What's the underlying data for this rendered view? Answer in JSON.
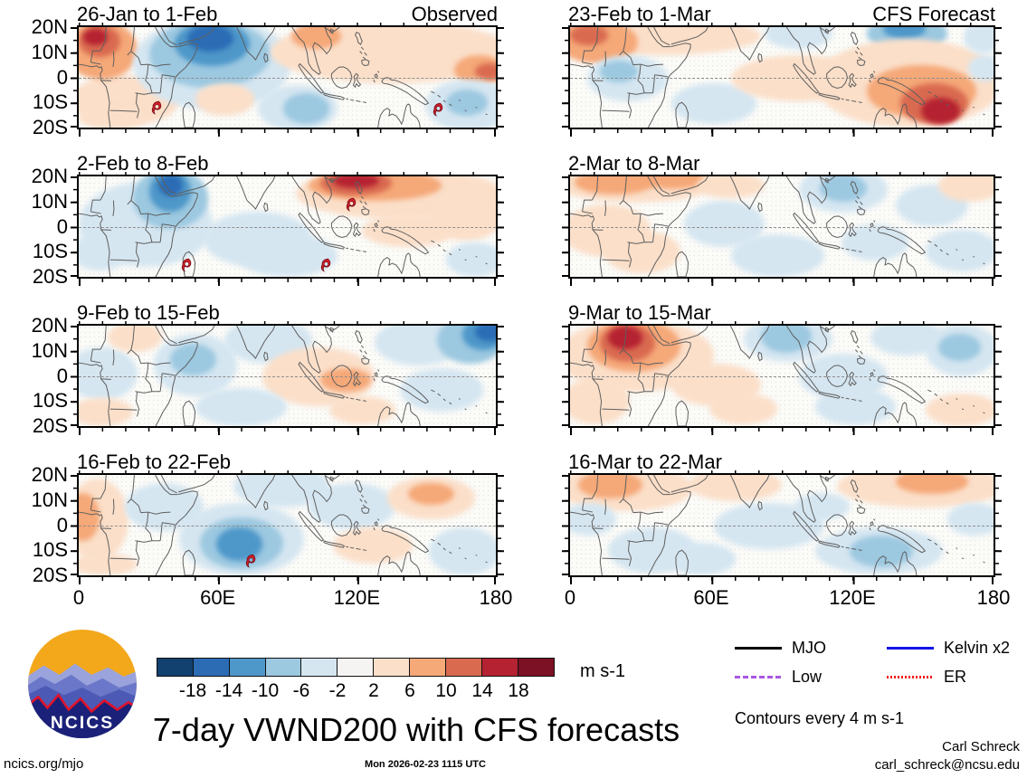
{
  "chart_data": {
    "type": "heatmap",
    "title": "7-day VWND200 with CFS forecasts",
    "generated": "Mon 2026-02-23 1115 UTC",
    "site": "ncics.org/mjo",
    "credit_name": "Carl Schreck",
    "credit_email": "carl_schreck@ncsu.edu",
    "units_label": "m s-1",
    "contour_note": "Contours every 4 m s-1",
    "logo_text": "NCICS",
    "x_axis": {
      "ticks": [
        "0",
        "60E",
        "120E",
        "180"
      ],
      "positions_pct": [
        0,
        33.333,
        66.667,
        100
      ],
      "range_deg": [
        0,
        180
      ]
    },
    "y_axis": {
      "ticks": [
        "20N",
        "10N",
        "0",
        "10S",
        "20S"
      ],
      "positions_pct": [
        0,
        25,
        50,
        75,
        100
      ],
      "range_deg": [
        20,
        -20
      ]
    },
    "colorbar": {
      "levels": [
        "-18",
        "-14",
        "-10",
        "-6",
        "-2",
        "2",
        "6",
        "10",
        "14",
        "18"
      ],
      "colors": [
        "#12406f",
        "#2b6cb5",
        "#4e97c9",
        "#9cc8e0",
        "#d5e6f1",
        "#f5f4f2",
        "#fbdfc9",
        "#f5a878",
        "#d96a50",
        "#b52231",
        "#7c1024"
      ]
    },
    "palette": {
      "b1": "#d5e6f1",
      "b2": "#9cc8e0",
      "b3": "#4e97c9",
      "b4": "#2b6cb5",
      "r1": "#fbdfc9",
      "r2": "#f5a878",
      "r3": "#d96a50",
      "r4": "#b52231"
    },
    "legend": {
      "items": [
        {
          "label": "MJO",
          "color": "#000000",
          "style": "solid"
        },
        {
          "label": "Kelvin x2",
          "color": "#1414e8",
          "style": "solid"
        },
        {
          "label": "Low",
          "color": "#a957e3",
          "style": "dashed"
        },
        {
          "label": "ER",
          "color": "#f21818",
          "style": "dotted"
        }
      ]
    },
    "panels": [
      {
        "title": "26-Jan to 1-Feb",
        "corner": "Observed",
        "col": 0,
        "row": 0,
        "blobs": [
          [
            -2,
            48,
            26,
            50,
            "r1"
          ],
          [
            -3,
            -6,
            17,
            58,
            "r2"
          ],
          [
            0,
            -2,
            10,
            32,
            "r3"
          ],
          [
            1,
            2,
            6,
            16,
            "r4"
          ],
          [
            13,
            -10,
            38,
            92,
            "b1"
          ],
          [
            17,
            -6,
            29,
            66,
            "b2"
          ],
          [
            23,
            -5,
            18,
            44,
            "b3"
          ],
          [
            26,
            -2,
            11,
            26,
            "b4"
          ],
          [
            28,
            56,
            14,
            32,
            "r1"
          ],
          [
            46,
            -6,
            58,
            62,
            "r1"
          ],
          [
            51,
            -4,
            12,
            26,
            "r2"
          ],
          [
            90,
            28,
            12,
            30,
            "r2"
          ],
          [
            95,
            36,
            7,
            16,
            "r3"
          ],
          [
            43,
            58,
            19,
            46,
            "b1"
          ],
          [
            49,
            66,
            11,
            30,
            "b2"
          ],
          [
            83,
            52,
            21,
            52,
            "b1"
          ],
          [
            88,
            62,
            10,
            26,
            "b2"
          ],
          [
            0,
            78,
            16,
            24,
            "r1"
          ]
        ],
        "cyclones": [
          [
            18.5,
            80
          ],
          [
            86,
            82
          ]
        ]
      },
      {
        "title": "2-Feb to 8-Feb",
        "corner": "",
        "col": 0,
        "row": 1,
        "blobs": [
          [
            0,
            5,
            32,
            85,
            "b1"
          ],
          [
            13,
            -8,
            18,
            60,
            "b2"
          ],
          [
            17,
            -5,
            10,
            40,
            "b3"
          ],
          [
            19,
            -2,
            6,
            22,
            "b4"
          ],
          [
            30,
            35,
            26,
            55,
            "b1"
          ],
          [
            52,
            -8,
            50,
            50,
            "r1"
          ],
          [
            55,
            -6,
            32,
            30,
            "r2"
          ],
          [
            58,
            -5,
            17,
            24,
            "r3"
          ],
          [
            61,
            -3,
            11,
            15,
            "r4"
          ],
          [
            84,
            12,
            18,
            52,
            "r1"
          ],
          [
            68,
            38,
            22,
            32,
            "r1"
          ],
          [
            38,
            58,
            24,
            42,
            "b1"
          ],
          [
            88,
            66,
            14,
            34,
            "b1"
          ],
          [
            -2,
            58,
            14,
            36,
            "b1"
          ]
        ],
        "cyclones": [
          [
            25.5,
            88
          ],
          [
            59,
            88
          ],
          [
            65,
            28
          ]
        ]
      },
      {
        "title": "9-Feb to 15-Feb",
        "corner": "",
        "col": 0,
        "row": 2,
        "blobs": [
          [
            -3,
            22,
            17,
            52,
            "b1"
          ],
          [
            7,
            -4,
            13,
            30,
            "r1"
          ],
          [
            18,
            8,
            20,
            62,
            "b1"
          ],
          [
            22,
            18,
            11,
            32,
            "b2"
          ],
          [
            35,
            -8,
            21,
            46,
            "b1"
          ],
          [
            44,
            22,
            27,
            58,
            "r1"
          ],
          [
            58,
            42,
            12,
            24,
            "r2"
          ],
          [
            71,
            -6,
            21,
            46,
            "b1"
          ],
          [
            86,
            -10,
            16,
            48,
            "b2"
          ],
          [
            92,
            -6,
            10,
            30,
            "b3"
          ],
          [
            95,
            -3,
            7,
            18,
            "b4"
          ],
          [
            77,
            42,
            20,
            44,
            "b1"
          ],
          [
            28,
            62,
            22,
            38,
            "b1"
          ],
          [
            -2,
            72,
            15,
            28,
            "r1"
          ],
          [
            60,
            70,
            16,
            28,
            "r1"
          ]
        ],
        "cyclones": []
      },
      {
        "title": "16-Feb to 22-Feb",
        "corner": "",
        "col": 0,
        "row": 3,
        "blobs": [
          [
            -3,
            4,
            15,
            82,
            "r1"
          ],
          [
            -3,
            18,
            8,
            48,
            "r2"
          ],
          [
            11,
            8,
            19,
            48,
            "b1"
          ],
          [
            24,
            28,
            30,
            72,
            "b1"
          ],
          [
            29,
            42,
            20,
            52,
            "b2"
          ],
          [
            33,
            52,
            11,
            34,
            "b3"
          ],
          [
            37,
            -10,
            23,
            42,
            "b1"
          ],
          [
            55,
            8,
            21,
            46,
            "b1"
          ],
          [
            61,
            52,
            19,
            36,
            "r1"
          ],
          [
            74,
            2,
            21,
            42,
            "r1"
          ],
          [
            79,
            8,
            11,
            22,
            "r2"
          ],
          [
            84,
            52,
            17,
            48,
            "b1"
          ],
          [
            -2,
            78,
            16,
            22,
            "r1"
          ]
        ],
        "cyclones": [
          [
            41,
            86
          ]
        ]
      },
      {
        "title": "23-Feb to 1-Mar",
        "corner": "CFS Forecast",
        "col": 1,
        "row": 0,
        "blobs": [
          [
            -3,
            -10,
            48,
            38,
            "r1"
          ],
          [
            -3,
            -6,
            19,
            42,
            "r2"
          ],
          [
            0,
            -2,
            9,
            20,
            "r3"
          ],
          [
            4,
            28,
            19,
            46,
            "b1"
          ],
          [
            7,
            33,
            9,
            22,
            "b2"
          ],
          [
            24,
            56,
            20,
            40,
            "b1"
          ],
          [
            38,
            28,
            32,
            46,
            "r1"
          ],
          [
            46,
            -10,
            16,
            32,
            "b1"
          ],
          [
            70,
            -12,
            19,
            36,
            "b2"
          ],
          [
            74,
            -8,
            10,
            20,
            "b3"
          ],
          [
            58,
            12,
            44,
            88,
            "r1"
          ],
          [
            70,
            38,
            26,
            52,
            "r2"
          ],
          [
            78,
            56,
            16,
            40,
            "r3"
          ],
          [
            83,
            70,
            9,
            26,
            "r4"
          ],
          [
            93,
            -6,
            9,
            32,
            "b1"
          ],
          [
            94,
            28,
            8,
            26,
            "b1"
          ]
        ],
        "cyclones": []
      },
      {
        "title": "2-Mar to 8-Mar",
        "corner": "",
        "col": 1,
        "row": 1,
        "blobs": [
          [
            -3,
            -10,
            37,
            36,
            "r1"
          ],
          [
            1,
            -6,
            19,
            24,
            "r2"
          ],
          [
            17,
            -7,
            15,
            20,
            "r2"
          ],
          [
            -2,
            28,
            21,
            52,
            "r1"
          ],
          [
            8,
            54,
            18,
            42,
            "r1"
          ],
          [
            27,
            24,
            19,
            46,
            "b1"
          ],
          [
            54,
            -10,
            21,
            46,
            "b1"
          ],
          [
            59,
            -2,
            11,
            27,
            "b2"
          ],
          [
            77,
            8,
            17,
            42,
            "b1"
          ],
          [
            87,
            -7,
            15,
            32,
            "r1"
          ],
          [
            38,
            58,
            22,
            42,
            "b1"
          ],
          [
            64,
            48,
            16,
            36,
            "b1"
          ],
          [
            84,
            53,
            17,
            42,
            "b1"
          ],
          [
            30,
            -4,
            16,
            26,
            "r1"
          ]
        ],
        "cyclones": []
      },
      {
        "title": "9-Mar to 15-Mar",
        "corner": "",
        "col": 1,
        "row": 2,
        "blobs": [
          [
            -3,
            -6,
            37,
            72,
            "r1"
          ],
          [
            4,
            -6,
            22,
            52,
            "r2"
          ],
          [
            7,
            -2,
            13,
            38,
            "r3"
          ],
          [
            9,
            1,
            8,
            22,
            "r4"
          ],
          [
            -2,
            52,
            16,
            46,
            "r1"
          ],
          [
            24,
            38,
            21,
            42,
            "r1"
          ],
          [
            41,
            -10,
            21,
            46,
            "b1"
          ],
          [
            45,
            -5,
            12,
            32,
            "b2"
          ],
          [
            54,
            28,
            21,
            46,
            "b1"
          ],
          [
            71,
            -6,
            17,
            36,
            "b1"
          ],
          [
            84,
            -2,
            17,
            52,
            "b1"
          ],
          [
            87,
            8,
            10,
            27,
            "b2"
          ],
          [
            58,
            62,
            19,
            37,
            "b1"
          ],
          [
            84,
            68,
            17,
            32,
            "r1"
          ],
          [
            33,
            68,
            16,
            30,
            "r1"
          ]
        ],
        "cyclones": []
      },
      {
        "title": "16-Mar to 22-Mar",
        "corner": "",
        "col": 1,
        "row": 3,
        "blobs": [
          [
            -3,
            -10,
            32,
            46,
            "r1"
          ],
          [
            2,
            -4,
            15,
            27,
            "r2"
          ],
          [
            28,
            -6,
            22,
            32,
            "r1"
          ],
          [
            63,
            -10,
            40,
            42,
            "r1"
          ],
          [
            77,
            -5,
            17,
            24,
            "r2"
          ],
          [
            34,
            28,
            26,
            46,
            "b1"
          ],
          [
            -2,
            28,
            13,
            32,
            "b1"
          ],
          [
            9,
            52,
            21,
            46,
            "b1"
          ],
          [
            58,
            52,
            30,
            47,
            "b1"
          ],
          [
            66,
            60,
            15,
            32,
            "b2"
          ],
          [
            89,
            28,
            13,
            32,
            "b1"
          ],
          [
            23,
            68,
            16,
            32,
            "b1"
          ],
          [
            53,
            18,
            13,
            27,
            "b1"
          ]
        ],
        "cyclones": []
      }
    ]
  }
}
